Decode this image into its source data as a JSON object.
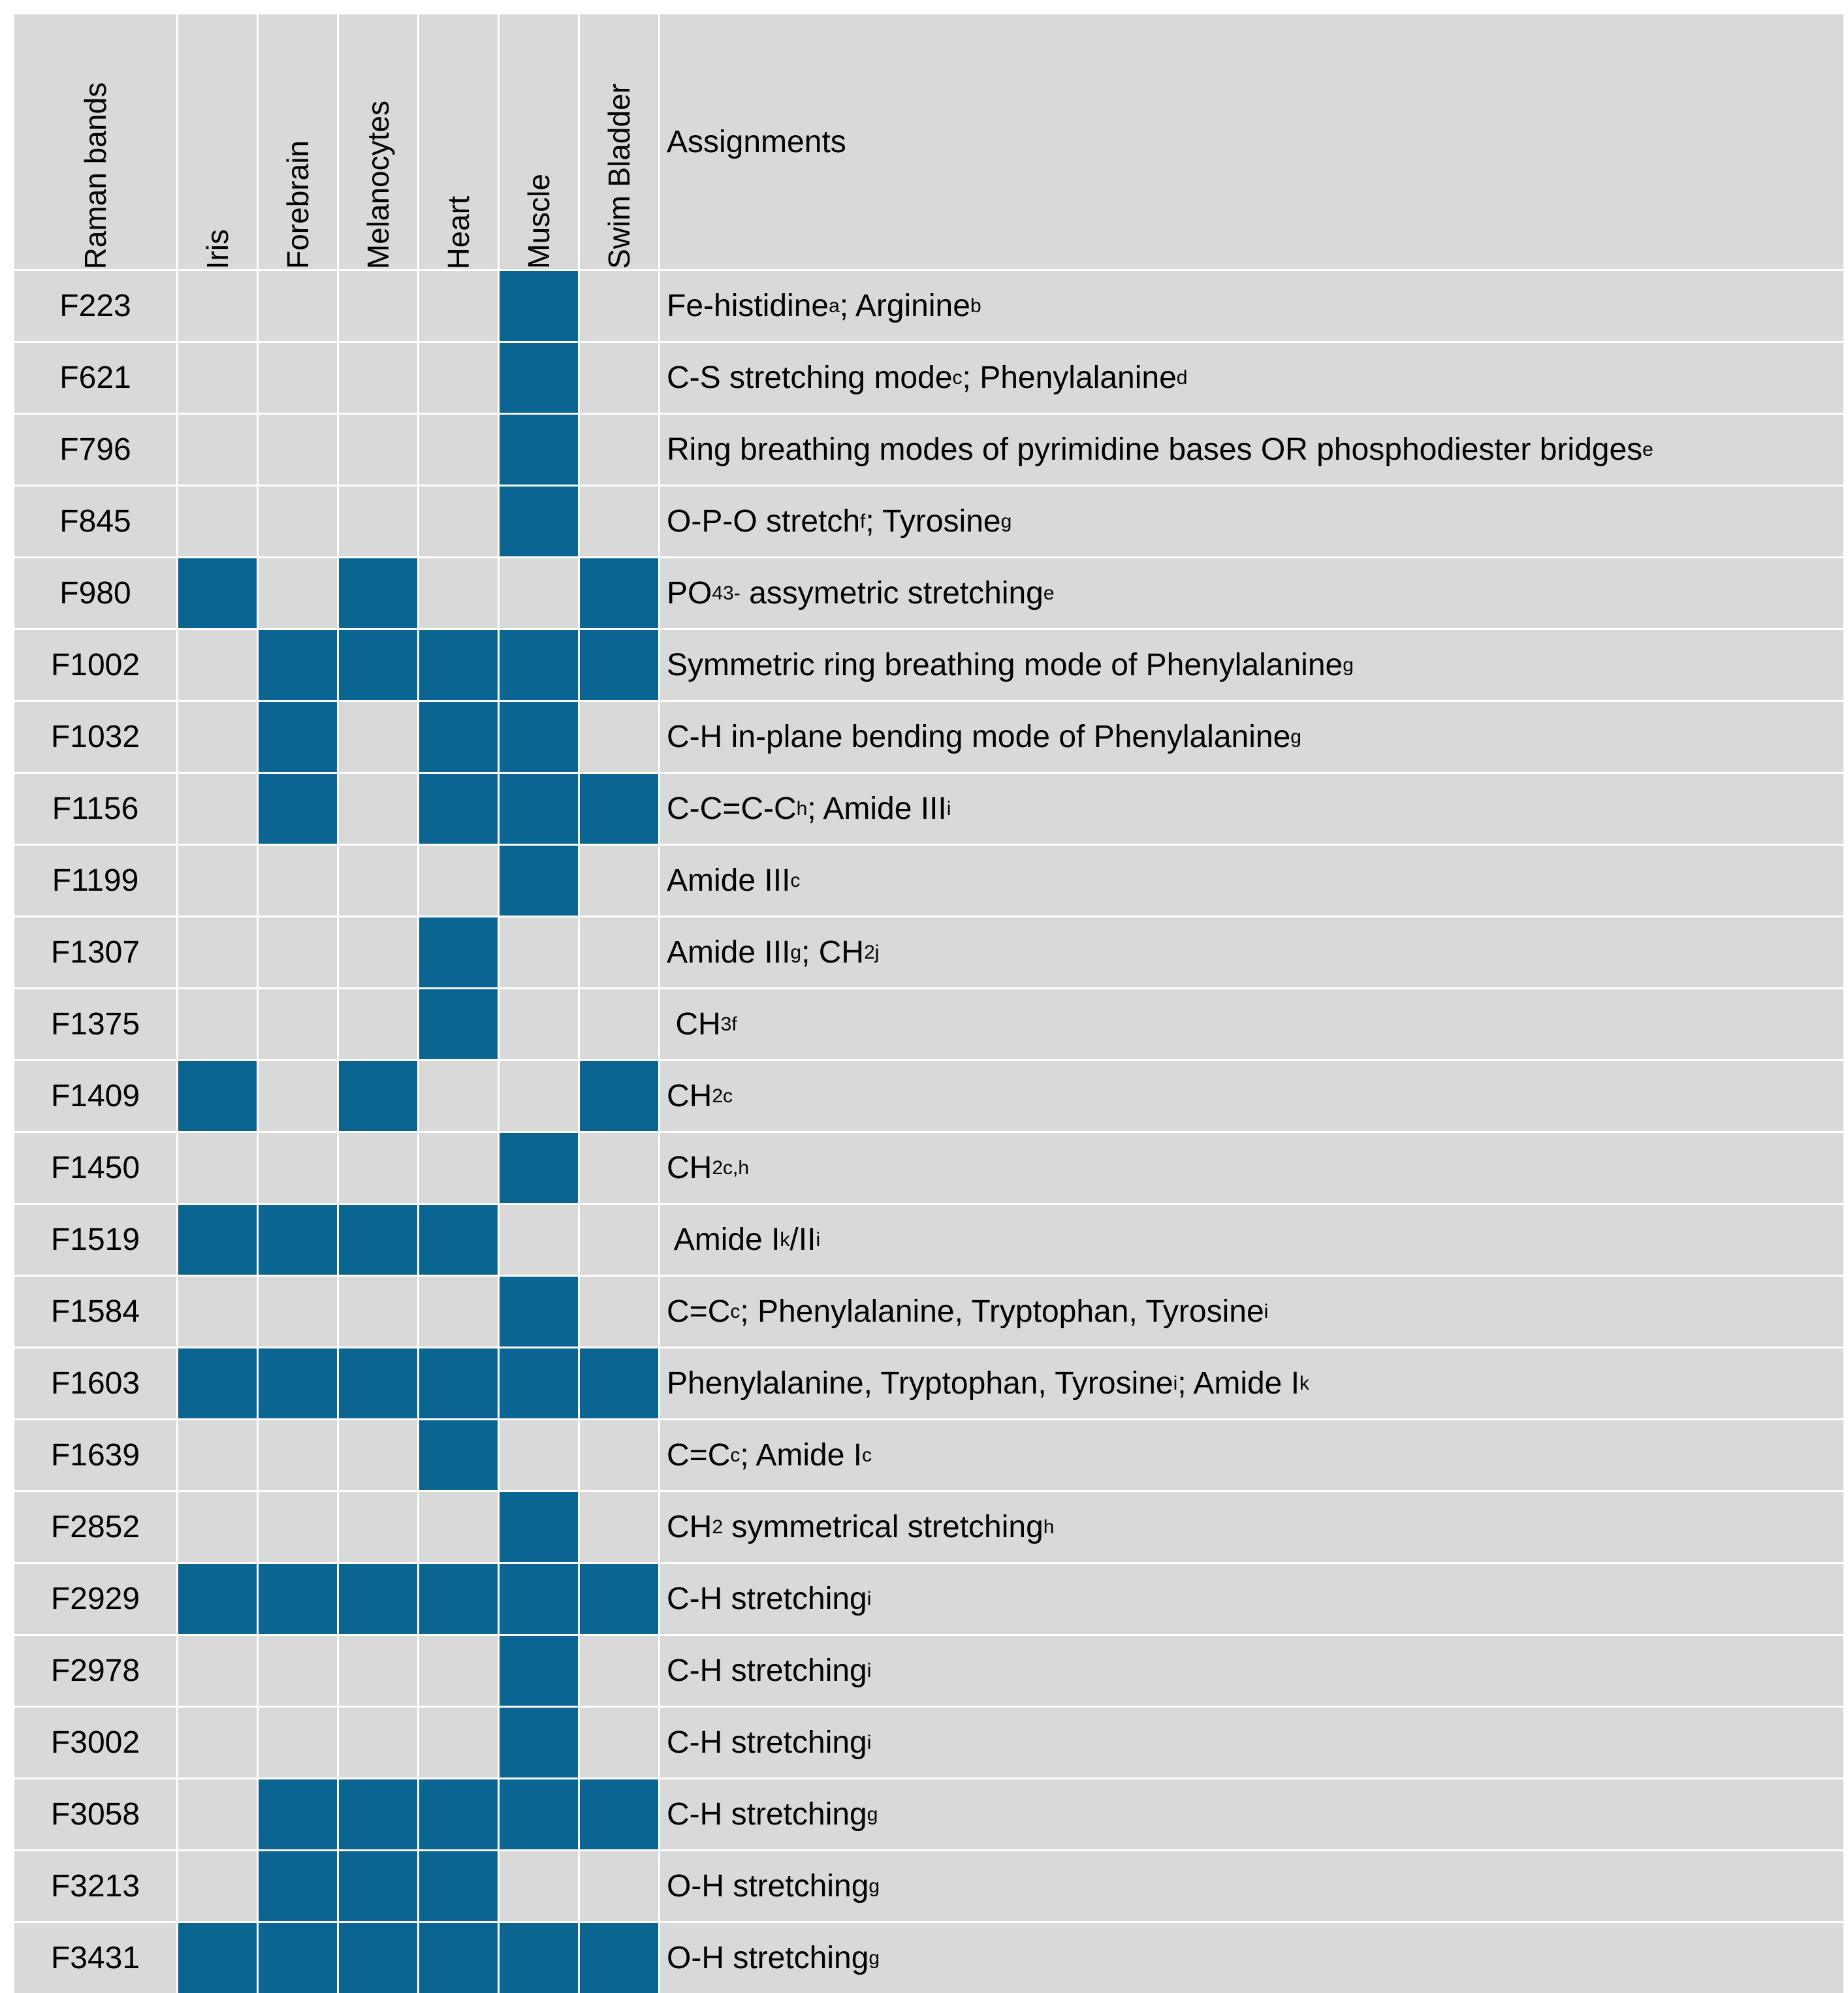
{
  "headers": {
    "band": "Raman bands",
    "tissues": [
      "Iris",
      "Forebrain",
      "Melanocytes",
      "Heart",
      "Muscle",
      "Swim Bladder"
    ],
    "assignments": "Assignments"
  },
  "colors": {
    "marked": "#0b6593",
    "unmarked": "#d9d9d9",
    "grid": "#ffffff"
  },
  "rows": [
    {
      "band": "F223",
      "marks": [
        0,
        0,
        0,
        0,
        1,
        0
      ],
      "parts": [
        {
          "t": "Fe-histidine"
        },
        {
          "t": "a",
          "s": "sup"
        },
        {
          "t": "; Arginine"
        },
        {
          "t": "b",
          "s": "sup"
        }
      ]
    },
    {
      "band": "F621",
      "marks": [
        0,
        0,
        0,
        0,
        1,
        0
      ],
      "parts": [
        {
          "t": "C-S stretching mode"
        },
        {
          "t": "c",
          "s": "sup"
        },
        {
          "t": "; Phenylalanine"
        },
        {
          "t": "d",
          "s": "sup"
        }
      ]
    },
    {
      "band": "F796",
      "marks": [
        0,
        0,
        0,
        0,
        1,
        0
      ],
      "parts": [
        {
          "t": "Ring breathing modes of pyrimidine bases OR phosphodiester bridges"
        },
        {
          "t": "e",
          "s": "sup"
        }
      ]
    },
    {
      "band": "F845",
      "marks": [
        0,
        0,
        0,
        0,
        1,
        0
      ],
      "parts": [
        {
          "t": "O-P-O stretch"
        },
        {
          "t": "f",
          "s": "sup"
        },
        {
          "t": "; Tyrosine"
        },
        {
          "t": "g",
          "s": "sup"
        }
      ]
    },
    {
      "band": "F980",
      "marks": [
        1,
        0,
        1,
        0,
        0,
        1
      ],
      "parts": [
        {
          "t": "PO"
        },
        {
          "t": "4",
          "s": "sub"
        },
        {
          "t": "3-",
          "s": "sup"
        },
        {
          "t": " assymetric stretching"
        },
        {
          "t": "e",
          "s": "sup"
        }
      ]
    },
    {
      "band": "F1002",
      "marks": [
        0,
        1,
        1,
        1,
        1,
        1
      ],
      "parts": [
        {
          "t": "Symmetric ring breathing mode of Phenylalanine"
        },
        {
          "t": "g",
          "s": "sup"
        }
      ]
    },
    {
      "band": "F1032",
      "marks": [
        0,
        1,
        0,
        1,
        1,
        0
      ],
      "parts": [
        {
          "t": "C-H in-plane bending mode of Phenylalanine"
        },
        {
          "t": "g",
          "s": "sup"
        }
      ]
    },
    {
      "band": "F1156",
      "marks": [
        0,
        1,
        0,
        1,
        1,
        1
      ],
      "parts": [
        {
          "t": "C-C=C-C"
        },
        {
          "t": "h",
          "s": "sup"
        },
        {
          "t": "; Amide III"
        },
        {
          "t": "i",
          "s": "sup"
        }
      ]
    },
    {
      "band": "F1199",
      "marks": [
        0,
        0,
        0,
        0,
        1,
        0
      ],
      "parts": [
        {
          "t": "Amide III"
        },
        {
          "t": "c",
          "s": "sup"
        }
      ]
    },
    {
      "band": "F1307",
      "marks": [
        0,
        0,
        0,
        1,
        0,
        0
      ],
      "parts": [
        {
          "t": "Amide III"
        },
        {
          "t": "g",
          "s": "sup"
        },
        {
          "t": "; CH"
        },
        {
          "t": "2",
          "s": "sub"
        },
        {
          "t": "j",
          "s": "sup"
        }
      ]
    },
    {
      "band": "F1375",
      "marks": [
        0,
        0,
        0,
        1,
        0,
        0
      ],
      "parts": [
        {
          "t": " CH"
        },
        {
          "t": "3",
          "s": "sub"
        },
        {
          "t": "f",
          "s": "sup"
        }
      ]
    },
    {
      "band": "F1409",
      "marks": [
        1,
        0,
        1,
        0,
        0,
        1
      ],
      "parts": [
        {
          "t": "CH"
        },
        {
          "t": "2",
          "s": "sub"
        },
        {
          "t": "c",
          "s": "sup"
        }
      ]
    },
    {
      "band": "F1450",
      "marks": [
        0,
        0,
        0,
        0,
        1,
        0
      ],
      "parts": [
        {
          "t": "CH"
        },
        {
          "t": "2",
          "s": "sub"
        },
        {
          "t": "c,h",
          "s": "sup"
        }
      ]
    },
    {
      "band": "F1519",
      "marks": [
        1,
        1,
        1,
        1,
        0,
        0
      ],
      "parts": [
        {
          "t": " Amide I"
        },
        {
          "t": "k",
          "s": "sup"
        },
        {
          "t": "/II"
        },
        {
          "t": "i",
          "s": "sup"
        }
      ]
    },
    {
      "band": "F1584",
      "marks": [
        0,
        0,
        0,
        0,
        1,
        0
      ],
      "parts": [
        {
          "t": "C=C"
        },
        {
          "t": "c",
          "s": "sup"
        },
        {
          "t": "; Phenylalanine, Tryptophan, Tyrosine"
        },
        {
          "t": "i",
          "s": "sup"
        }
      ]
    },
    {
      "band": "F1603",
      "marks": [
        1,
        1,
        1,
        1,
        1,
        1
      ],
      "parts": [
        {
          "t": "Phenylalanine, Tryptophan, Tyrosine"
        },
        {
          "t": "i",
          "s": "sup"
        },
        {
          "t": "; Amide I"
        },
        {
          "t": "k",
          "s": "sup"
        }
      ]
    },
    {
      "band": "F1639",
      "marks": [
        0,
        0,
        0,
        1,
        0,
        0
      ],
      "parts": [
        {
          "t": "C=C"
        },
        {
          "t": "c",
          "s": "sup"
        },
        {
          "t": "; Amide I"
        },
        {
          "t": "c",
          "s": "sup"
        }
      ]
    },
    {
      "band": "F2852",
      "marks": [
        0,
        0,
        0,
        0,
        1,
        0
      ],
      "parts": [
        {
          "t": "CH"
        },
        {
          "t": "2",
          "s": "sub"
        },
        {
          "t": " symmetrical stretching"
        },
        {
          "t": "h",
          "s": "sup"
        }
      ]
    },
    {
      "band": "F2929",
      "marks": [
        1,
        1,
        1,
        1,
        1,
        1
      ],
      "parts": [
        {
          "t": "C-H stretching"
        },
        {
          "t": "i",
          "s": "sup"
        }
      ]
    },
    {
      "band": "F2978",
      "marks": [
        0,
        0,
        0,
        0,
        1,
        0
      ],
      "parts": [
        {
          "t": "C-H stretching"
        },
        {
          "t": "i",
          "s": "sup"
        }
      ]
    },
    {
      "band": "F3002",
      "marks": [
        0,
        0,
        0,
        0,
        1,
        0
      ],
      "parts": [
        {
          "t": "C-H stretching"
        },
        {
          "t": "i",
          "s": "sup"
        }
      ]
    },
    {
      "band": "F3058",
      "marks": [
        0,
        1,
        1,
        1,
        1,
        1
      ],
      "parts": [
        {
          "t": "C-H stretching"
        },
        {
          "t": "g",
          "s": "sup"
        }
      ]
    },
    {
      "band": "F3213",
      "marks": [
        0,
        1,
        1,
        1,
        0,
        0
      ],
      "parts": [
        {
          "t": "O-H stretching"
        },
        {
          "t": "g",
          "s": "sup"
        }
      ]
    },
    {
      "band": "F3431",
      "marks": [
        1,
        1,
        1,
        1,
        1,
        1
      ],
      "parts": [
        {
          "t": "O-H stretching"
        },
        {
          "t": "g",
          "s": "sup"
        }
      ]
    }
  ]
}
